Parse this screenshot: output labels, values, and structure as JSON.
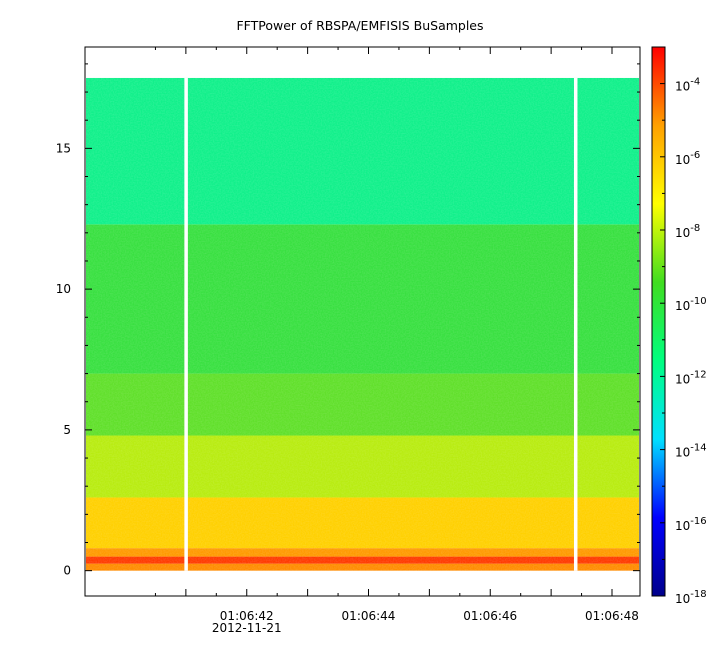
{
  "chart_data": {
    "type": "heatmap",
    "title": "FFTPower of RBSPA/EMFISIS  BuSamples",
    "xlabel": "",
    "ylabel": "",
    "x_ticks": [
      "01:06:42",
      "01:06:44",
      "01:06:46",
      "01:06:48"
    ],
    "x_date_label": "2012-11-21",
    "y_ticks": [
      0,
      5,
      10,
      15
    ],
    "ylim": [
      -0.9,
      18.6
    ],
    "data_y_range": [
      0,
      17.5
    ],
    "colorbar": {
      "scale": "log",
      "range": [
        1e-18,
        0.001
      ],
      "tick_labels": [
        {
          "base": "10",
          "exp": "-4"
        },
        {
          "base": "10",
          "exp": "-6"
        },
        {
          "base": "10",
          "exp": "-8"
        },
        {
          "base": "10",
          "exp": "-10"
        },
        {
          "base": "10",
          "exp": "-12"
        },
        {
          "base": "10",
          "exp": "-14"
        },
        {
          "base": "10",
          "exp": "-16"
        },
        {
          "base": "10",
          "exp": "-18"
        }
      ],
      "colormap": [
        "#00008b",
        "#0000ff",
        "#00e0ff",
        "#00ff80",
        "#40dd20",
        "#ffff00",
        "#ffa000",
        "#ff0000"
      ]
    },
    "bands": [
      {
        "y_range": [
          0,
          0.25
        ],
        "log_power": -6.5,
        "color": "#ff8c00"
      },
      {
        "y_range": [
          0.25,
          0.5
        ],
        "log_power": -5.5,
        "color": "#ff3a00"
      },
      {
        "y_range": [
          0.5,
          0.8
        ],
        "log_power": -6.8,
        "color": "#ff9a00"
      },
      {
        "y_range": [
          0.8,
          2.6
        ],
        "log_power": -8.2,
        "color": "#ffd000"
      },
      {
        "y_range": [
          2.6,
          4.8
        ],
        "log_power": -9.3,
        "color": "#b8ec10"
      },
      {
        "y_range": [
          4.8,
          7.0
        ],
        "log_power": -10.2,
        "color": "#60e02a"
      },
      {
        "y_range": [
          7.0,
          12.3
        ],
        "log_power": -10.7,
        "color": "#38e040"
      },
      {
        "y_range": [
          12.3,
          17.5
        ],
        "log_power": -11.5,
        "color": "#10f08a"
      }
    ],
    "data_gaps_time": [
      "01:06:41.0",
      "01:06:47.4"
    ],
    "grid": false
  }
}
